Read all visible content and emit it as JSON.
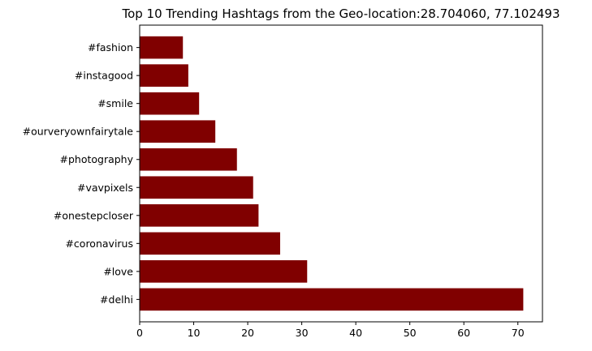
{
  "chart_data": {
    "type": "bar",
    "orientation": "horizontal",
    "title": "Top 10 Trending Hashtags from the Geo-location:28.704060, 77.102493",
    "xlabel": "",
    "ylabel": "",
    "categories": [
      "#delhi",
      "#love",
      "#coronavirus",
      "#onestepcloser",
      "#vavpixels",
      "#photography",
      "#ourveryownfairytale",
      "#smile",
      "#instagood",
      "#fashion"
    ],
    "values": [
      71,
      31,
      26,
      22,
      21,
      18,
      14,
      11,
      9,
      8
    ],
    "xlim": [
      0,
      74.55
    ],
    "xticks": [
      0,
      10,
      20,
      30,
      40,
      50,
      60,
      70
    ],
    "grid": false,
    "bar_color": "#800000"
  }
}
